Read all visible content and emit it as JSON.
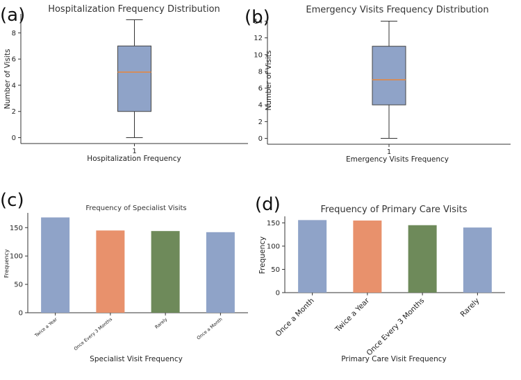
{
  "chart_data": [
    {
      "panel_label": "(a)",
      "type": "box",
      "title": "Hospitalization Frequency Distribution",
      "xlabel": "Hospitalization Frequency",
      "ylabel": "Number of Visits",
      "categories": [
        "1"
      ],
      "ylim": [
        -0.45,
        9.45
      ],
      "yticks": [
        0,
        2,
        4,
        6,
        8
      ],
      "box": {
        "min": 0,
        "q1": 2,
        "median": 5,
        "q3": 7,
        "max": 9
      },
      "box_color": "#8fa3c8",
      "median_color": "#e8863a"
    },
    {
      "panel_label": "(b)",
      "type": "box",
      "title": "Emergency Visits Frequency Distribution",
      "xlabel": "Emergency Visits Frequency",
      "ylabel": "Number of Visits",
      "categories": [
        "1"
      ],
      "ylim": [
        -0.7,
        14.7
      ],
      "yticks": [
        0,
        2,
        4,
        6,
        8,
        10,
        12,
        14
      ],
      "box": {
        "min": 0,
        "q1": 4,
        "median": 7,
        "q3": 11,
        "max": 14
      },
      "box_color": "#8fa3c8",
      "median_color": "#e8863a"
    },
    {
      "panel_label": "(c)",
      "type": "bar",
      "title": "Frequency of Specialist Visits",
      "xlabel": "Specialist Visit Frequency",
      "ylabel": "Frequency",
      "categories": [
        "Twice a Year",
        "Once Every 3 Months",
        "Rarely",
        "Once a Month"
      ],
      "values": [
        168,
        145,
        144,
        142
      ],
      "colors": [
        "#8fa3c8",
        "#e8916c",
        "#6e8a5a",
        "#8fa3c8"
      ],
      "ylim": [
        0,
        176
      ],
      "yticks": [
        0,
        50,
        100,
        150
      ]
    },
    {
      "panel_label": "(d)",
      "type": "bar",
      "title": "Frequency of Primary Care Visits",
      "xlabel": "Primary Care Visit Frequency",
      "ylabel": "Frequency",
      "categories": [
        "Once a Month",
        "Twice a Year",
        "Once Every 3 Months",
        "Rarely"
      ],
      "values": [
        156,
        155,
        145,
        140
      ],
      "colors": [
        "#8fa3c8",
        "#e8916c",
        "#6e8a5a",
        "#8fa3c8"
      ],
      "ylim": [
        0,
        164
      ],
      "yticks": [
        0,
        50,
        100,
        150
      ]
    }
  ]
}
